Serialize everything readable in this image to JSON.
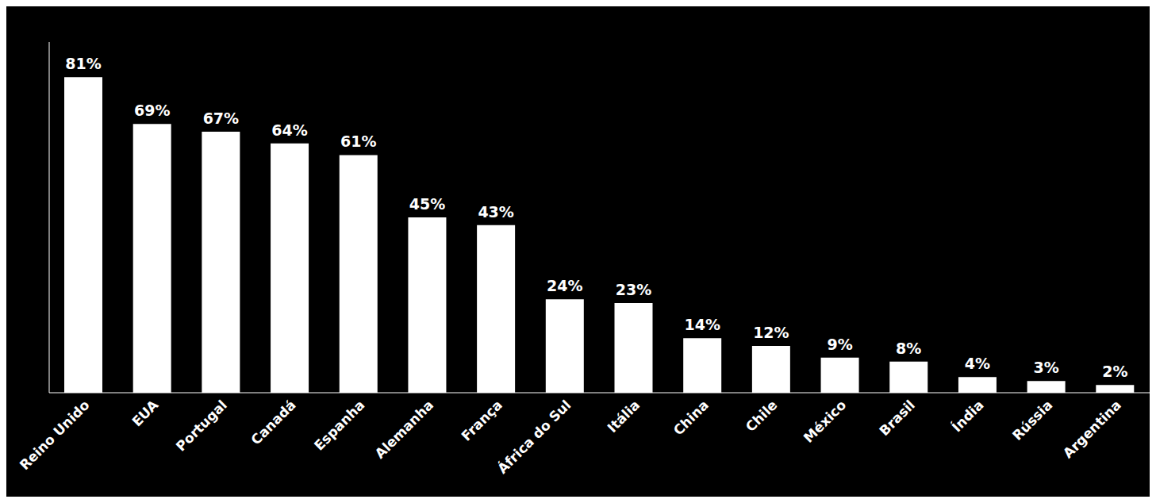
{
  "chart_data": {
    "type": "bar",
    "categories": [
      "Reino Unido",
      "EUA",
      "Portugal",
      "Canadá",
      "Espanha",
      "Alemanha",
      "França",
      "África do Sul",
      "Itália",
      "China",
      "Chile",
      "México",
      "Brasil",
      "Índia",
      "Rússia",
      "Argentina"
    ],
    "values": [
      81,
      69,
      67,
      64,
      61,
      45,
      43,
      24,
      23,
      14,
      12,
      9,
      8,
      4,
      3,
      2
    ],
    "value_labels": [
      "81%",
      "69%",
      "67%",
      "64%",
      "61%",
      "45%",
      "43%",
      "24%",
      "23%",
      "14%",
      "12%",
      "9%",
      "8%",
      "4%",
      "3%",
      "2%"
    ],
    "color": "#ffffff",
    "ylim": [
      0,
      90
    ],
    "data_labels": true,
    "tick_labels": "x",
    "grid": false
  }
}
